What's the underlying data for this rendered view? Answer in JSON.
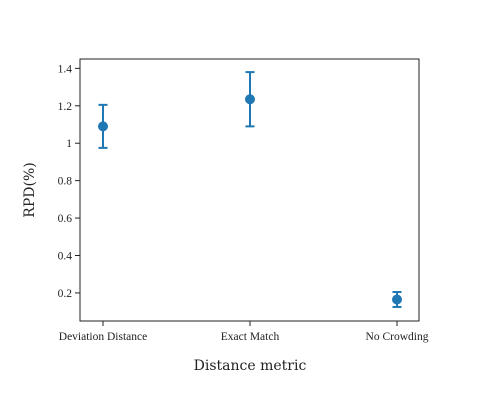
{
  "chart_data": {
    "type": "scatter",
    "title": "",
    "xlabel": "Distance metric",
    "ylabel": "RPD(%)",
    "categories": [
      "Deviation Distance",
      "Exact Match",
      "No Crowding"
    ],
    "series": [
      {
        "values": [
          1.09,
          1.235,
          0.165
        ],
        "error_low": [
          0.975,
          1.09,
          0.125
        ],
        "error_high": [
          1.205,
          1.38,
          0.205
        ],
        "color": "#1f77b4"
      }
    ],
    "ylim": [
      0.05,
      1.45
    ],
    "yticks": [
      "0.2",
      "0.4",
      "0.6",
      "0.8",
      "1",
      "1.2",
      "1.4"
    ],
    "ytick_values": [
      0.2,
      0.4,
      0.6,
      0.8,
      1.0,
      1.2,
      1.4
    ],
    "grid": false,
    "legend": "none"
  }
}
